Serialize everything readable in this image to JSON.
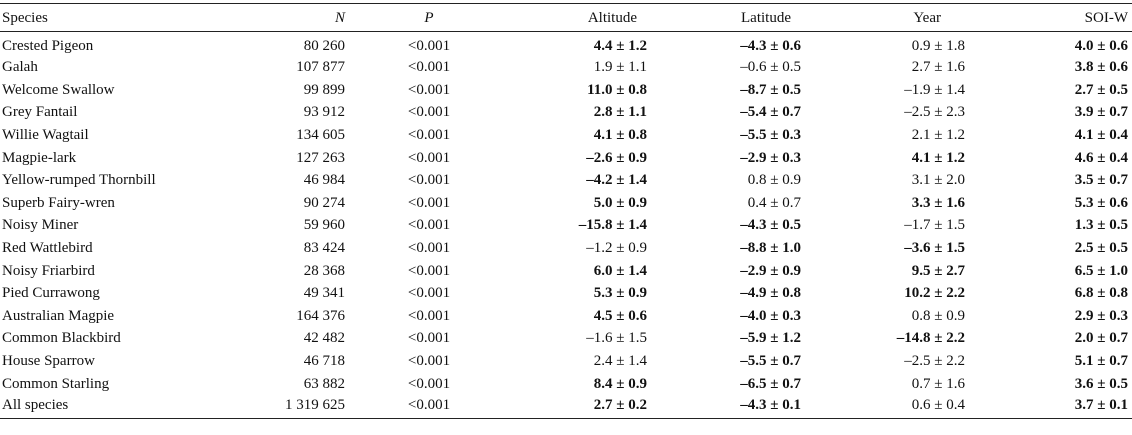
{
  "table": {
    "headers": {
      "species": "Species",
      "n": "N",
      "p": "P",
      "altitude": "Altitude",
      "latitude": "Latitude",
      "year": "Year",
      "soi": "SOI-W"
    },
    "rows": [
      {
        "species": "Crested Pigeon",
        "n": "80 260",
        "p": "<0.001",
        "altitude": {
          "text": "4.4 ± 1.2",
          "bold": true
        },
        "latitude": {
          "text": "–4.3 ± 0.6",
          "bold": true
        },
        "year": {
          "text": "0.9 ± 1.8",
          "bold": false
        },
        "soi": {
          "text": "4.0 ± 0.6",
          "bold": true
        }
      },
      {
        "species": "Galah",
        "n": "107 877",
        "p": "<0.001",
        "altitude": {
          "text": "1.9 ± 1.1",
          "bold": false
        },
        "latitude": {
          "text": "–0.6 ± 0.5",
          "bold": false
        },
        "year": {
          "text": "2.7 ± 1.6",
          "bold": false
        },
        "soi": {
          "text": "3.8 ± 0.6",
          "bold": true
        }
      },
      {
        "species": "Welcome Swallow",
        "n": "99 899",
        "p": "<0.001",
        "altitude": {
          "text": "11.0 ± 0.8",
          "bold": true
        },
        "latitude": {
          "text": "–8.7 ± 0.5",
          "bold": true
        },
        "year": {
          "text": "–1.9 ± 1.4",
          "bold": false
        },
        "soi": {
          "text": "2.7 ± 0.5",
          "bold": true
        }
      },
      {
        "species": "Grey Fantail",
        "n": "93 912",
        "p": "<0.001",
        "altitude": {
          "text": "2.8 ± 1.1",
          "bold": true
        },
        "latitude": {
          "text": "–5.4 ± 0.7",
          "bold": true
        },
        "year": {
          "text": "–2.5 ± 2.3",
          "bold": false
        },
        "soi": {
          "text": "3.9 ± 0.7",
          "bold": true
        }
      },
      {
        "species": "Willie Wagtail",
        "n": "134 605",
        "p": "<0.001",
        "altitude": {
          "text": "4.1 ± 0.8",
          "bold": true
        },
        "latitude": {
          "text": "–5.5 ± 0.3",
          "bold": true
        },
        "year": {
          "text": "2.1 ± 1.2",
          "bold": false
        },
        "soi": {
          "text": "4.1 ± 0.4",
          "bold": true
        }
      },
      {
        "species": "Magpie-lark",
        "n": "127 263",
        "p": "<0.001",
        "altitude": {
          "text": "–2.6 ± 0.9",
          "bold": true
        },
        "latitude": {
          "text": "–2.9 ± 0.3",
          "bold": true
        },
        "year": {
          "text": "4.1 ± 1.2",
          "bold": true
        },
        "soi": {
          "text": "4.6 ± 0.4",
          "bold": true
        }
      },
      {
        "species": "Yellow-rumped Thornbill",
        "n": "46 984",
        "p": "<0.001",
        "altitude": {
          "text": "–4.2 ± 1.4",
          "bold": true
        },
        "latitude": {
          "text": "0.8 ± 0.9",
          "bold": false
        },
        "year": {
          "text": "3.1 ± 2.0",
          "bold": false
        },
        "soi": {
          "text": "3.5 ± 0.7",
          "bold": true
        }
      },
      {
        "species": "Superb Fairy-wren",
        "n": "90 274",
        "p": "<0.001",
        "altitude": {
          "text": "5.0 ± 0.9",
          "bold": true
        },
        "latitude": {
          "text": "0.4 ± 0.7",
          "bold": false
        },
        "year": {
          "text": "3.3 ± 1.6",
          "bold": true
        },
        "soi": {
          "text": "5.3 ± 0.6",
          "bold": true
        }
      },
      {
        "species": "Noisy Miner",
        "n": "59 960",
        "p": "<0.001",
        "altitude": {
          "text": "–15.8 ± 1.4",
          "bold": true
        },
        "latitude": {
          "text": "–4.3 ± 0.5",
          "bold": true
        },
        "year": {
          "text": "–1.7 ± 1.5",
          "bold": false
        },
        "soi": {
          "text": "1.3 ± 0.5",
          "bold": true
        }
      },
      {
        "species": "Red Wattlebird",
        "n": "83 424",
        "p": "<0.001",
        "altitude": {
          "text": "–1.2 ± 0.9",
          "bold": false
        },
        "latitude": {
          "text": "–8.8 ± 1.0",
          "bold": true
        },
        "year": {
          "text": "–3.6 ± 1.5",
          "bold": true
        },
        "soi": {
          "text": "2.5 ± 0.5",
          "bold": true
        }
      },
      {
        "species": "Noisy Friarbird",
        "n": "28 368",
        "p": "<0.001",
        "altitude": {
          "text": "6.0 ± 1.4",
          "bold": true
        },
        "latitude": {
          "text": "–2.9 ± 0.9",
          "bold": true
        },
        "year": {
          "text": "9.5 ± 2.7",
          "bold": true
        },
        "soi": {
          "text": "6.5 ± 1.0",
          "bold": true
        }
      },
      {
        "species": "Pied Currawong",
        "n": "49 341",
        "p": "<0.001",
        "altitude": {
          "text": "5.3 ± 0.9",
          "bold": true
        },
        "latitude": {
          "text": "–4.9 ± 0.8",
          "bold": true
        },
        "year": {
          "text": "10.2 ± 2.2",
          "bold": true
        },
        "soi": {
          "text": "6.8 ± 0.8",
          "bold": true
        }
      },
      {
        "species": "Australian Magpie",
        "n": "164 376",
        "p": "<0.001",
        "altitude": {
          "text": "4.5 ± 0.6",
          "bold": true
        },
        "latitude": {
          "text": "–4.0 ± 0.3",
          "bold": true
        },
        "year": {
          "text": "0.8 ± 0.9",
          "bold": false
        },
        "soi": {
          "text": "2.9 ± 0.3",
          "bold": true
        }
      },
      {
        "species": "Common Blackbird",
        "n": "42 482",
        "p": "<0.001",
        "altitude": {
          "text": "–1.6 ± 1.5",
          "bold": false
        },
        "latitude": {
          "text": "–5.9 ± 1.2",
          "bold": true
        },
        "year": {
          "text": "–14.8 ± 2.2",
          "bold": true
        },
        "soi": {
          "text": "2.0 ± 0.7",
          "bold": true
        }
      },
      {
        "species": "House Sparrow",
        "n": "46 718",
        "p": "<0.001",
        "altitude": {
          "text": "2.4 ± 1.4",
          "bold": false
        },
        "latitude": {
          "text": "–5.5 ± 0.7",
          "bold": true
        },
        "year": {
          "text": "–2.5 ± 2.2",
          "bold": false
        },
        "soi": {
          "text": "5.1 ± 0.7",
          "bold": true
        }
      },
      {
        "species": "Common Starling",
        "n": "63 882",
        "p": "<0.001",
        "altitude": {
          "text": "8.4 ± 0.9",
          "bold": true
        },
        "latitude": {
          "text": "–6.5 ± 0.7",
          "bold": true
        },
        "year": {
          "text": "0.7 ± 1.6",
          "bold": false
        },
        "soi": {
          "text": "3.6 ± 0.5",
          "bold": true
        }
      },
      {
        "species": "All species",
        "n": "1 319 625",
        "p": "<0.001",
        "altitude": {
          "text": "2.7 ± 0.2",
          "bold": true
        },
        "latitude": {
          "text": "–4.3 ± 0.1",
          "bold": true
        },
        "year": {
          "text": "0.6 ± 0.4",
          "bold": false
        },
        "soi": {
          "text": "3.7 ± 0.1",
          "bold": true
        }
      }
    ]
  }
}
